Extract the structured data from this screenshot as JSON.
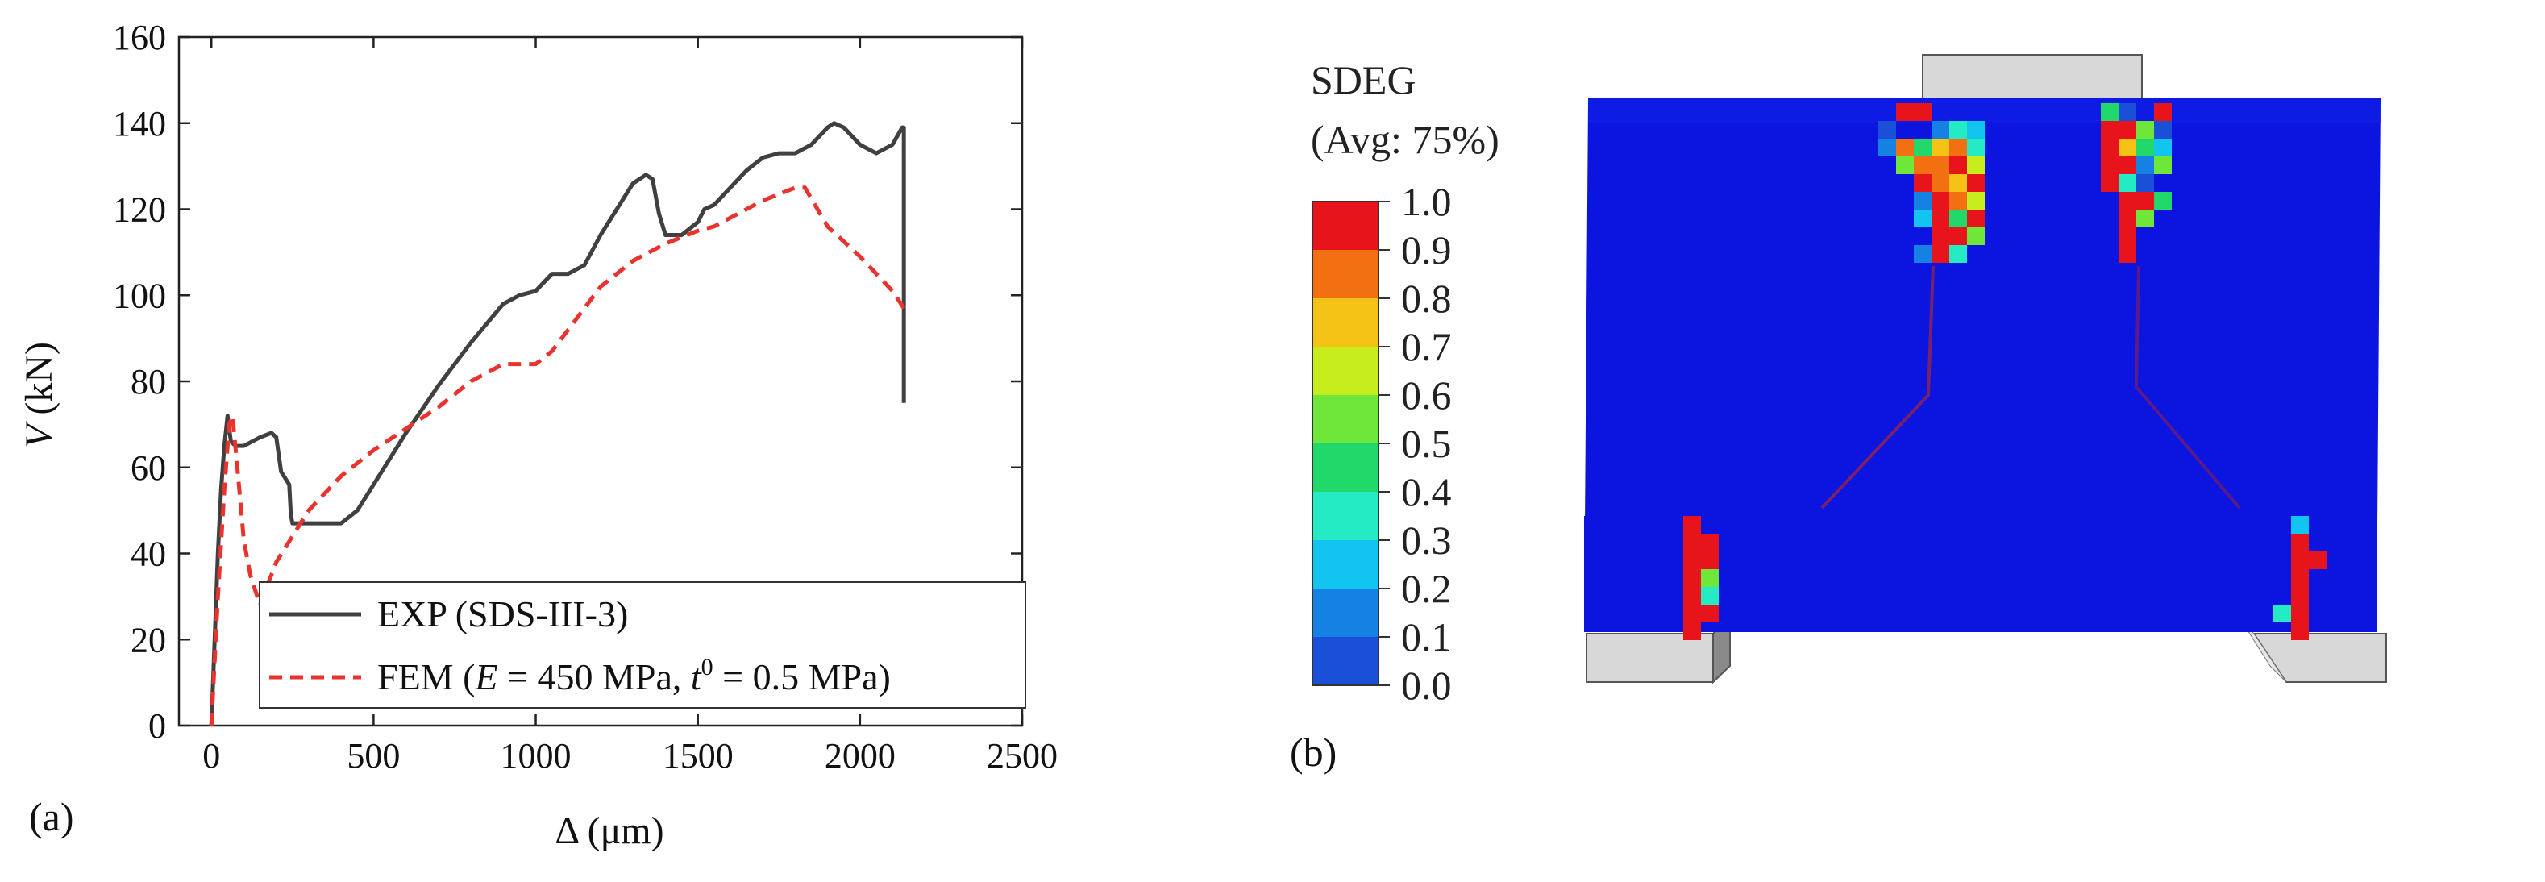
{
  "chart_data": {
    "type": "line",
    "panel_label": "(a)",
    "xlabel": "Δ (μm)",
    "ylabel": "V (kN)",
    "ylabel_var": "V",
    "ylabel_unit": " (kN)",
    "xlim": [
      -100,
      2500
    ],
    "ylim": [
      0,
      160
    ],
    "xticks": [
      0,
      500,
      1000,
      1500,
      2000,
      2500
    ],
    "yticks": [
      0,
      20,
      40,
      60,
      80,
      100,
      120,
      140,
      160
    ],
    "grid": false,
    "legend_position": "bottom-right",
    "series": [
      {
        "name": "EXP (SDS-III-3)",
        "color": "#404040",
        "style": "solid",
        "x": [
          0,
          10,
          20,
          30,
          40,
          50,
          60,
          75,
          100,
          150,
          185,
          200,
          215,
          240,
          245,
          250,
          300,
          400,
          450,
          500,
          600,
          700,
          800,
          900,
          950,
          1000,
          1050,
          1100,
          1150,
          1200,
          1250,
          1300,
          1340,
          1360,
          1380,
          1400,
          1420,
          1450,
          1500,
          1520,
          1550,
          1600,
          1650,
          1700,
          1750,
          1800,
          1850,
          1900,
          1920,
          1950,
          2000,
          2050,
          2100,
          2130,
          2135,
          2135
        ],
        "y": [
          0,
          20,
          40,
          55,
          65,
          72,
          66,
          65,
          65,
          67,
          68,
          67,
          59,
          56,
          49,
          47,
          47,
          47,
          50,
          56,
          68,
          79,
          89,
          98,
          100,
          101,
          105,
          105,
          107,
          114,
          120,
          126,
          128,
          127,
          119,
          114,
          114,
          114,
          117,
          120,
          121,
          125,
          129,
          132,
          133,
          133,
          135,
          139,
          140,
          139,
          135,
          133,
          135,
          139,
          139,
          75
        ]
      },
      {
        "name": "FEM (E = 450 MPa, t⁰ = 0.5 MPa)",
        "color": "#e8332e",
        "style": "dashed",
        "x": [
          0,
          20,
          40,
          55,
          65,
          80,
          100,
          120,
          150,
          200,
          300,
          400,
          500,
          600,
          700,
          800,
          900,
          1000,
          1050,
          1100,
          1150,
          1200,
          1300,
          1400,
          1500,
          1550,
          1600,
          1700,
          1800,
          1830,
          1900,
          2000,
          2100,
          2135
        ],
        "y": [
          0,
          30,
          55,
          70,
          72,
          60,
          43,
          35,
          28,
          38,
          50,
          58,
          64,
          69,
          74,
          80,
          84,
          84,
          87,
          92,
          97,
          102,
          108,
          112,
          115,
          116,
          118,
          122,
          125,
          125,
          116,
          109,
          101,
          97
        ]
      }
    ]
  },
  "fem": {
    "panel_label": "(b)",
    "legend_title": "SDEG",
    "legend_subtitle": "(Avg: 75%)",
    "legend_levels": [
      "1.0",
      "0.9",
      "0.8",
      "0.7",
      "0.6",
      "0.5",
      "0.4",
      "0.3",
      "0.2",
      "0.1",
      "0.0"
    ],
    "legend_colors": [
      "#e8141b",
      "#f26f12",
      "#f5c216",
      "#c8ed1c",
      "#6ee63a",
      "#21d86b",
      "#24ebc4",
      "#12c5f0",
      "#1481e3",
      "#1a4fd8",
      "#0a14d9"
    ],
    "background_color": "#0c14e0",
    "damage_color": "#e3141b"
  }
}
